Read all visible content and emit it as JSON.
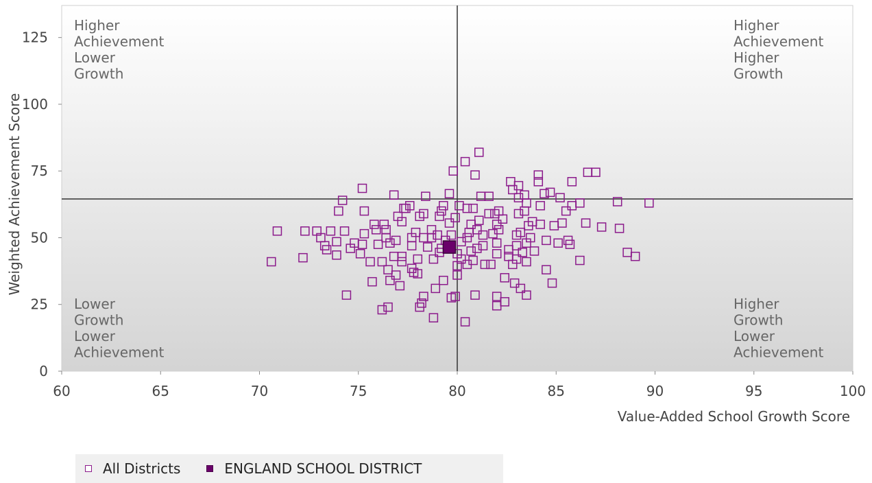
{
  "chart_data": {
    "type": "scatter",
    "xlabel": "Value-Added School Growth Score",
    "ylabel": "Weighted Achievement Score",
    "xlim": [
      60,
      100
    ],
    "ylim": [
      0,
      137
    ],
    "xticks": [
      "60",
      "65",
      "70",
      "75",
      "80",
      "85",
      "90",
      "95",
      "100"
    ],
    "yticks": [
      "0",
      "25",
      "50",
      "75",
      "100",
      "125"
    ],
    "reference_lines": {
      "x": 80,
      "y": 64.5
    },
    "quadrant_labels": {
      "top_left": [
        "Higher",
        "Achievement",
        "Lower",
        "Growth"
      ],
      "top_right": [
        "Higher",
        "Achievement",
        "Higher",
        "Growth"
      ],
      "bottom_left": [
        "Lower",
        "Growth",
        "Lower",
        "Achievement"
      ],
      "bottom_right": [
        "Higher",
        "Growth",
        "Lower",
        "Achievement"
      ]
    },
    "legend_position": "bottom-left",
    "series": [
      {
        "name": "All Districts",
        "marker": "open-square",
        "color": "#8b1a8b",
        "points": [
          [
            70.6,
            41
          ],
          [
            70.9,
            52.5
          ],
          [
            72.2,
            42.5
          ],
          [
            72.3,
            52.5
          ],
          [
            72.9,
            52.5
          ],
          [
            73.1,
            50
          ],
          [
            73.3,
            47
          ],
          [
            73.4,
            45.5
          ],
          [
            73.6,
            52.5
          ],
          [
            73.9,
            48.5
          ],
          [
            73.9,
            43.5
          ],
          [
            74.0,
            60
          ],
          [
            74.2,
            64
          ],
          [
            74.3,
            52.5
          ],
          [
            74.4,
            28.5
          ],
          [
            74.6,
            46
          ],
          [
            74.8,
            48
          ],
          [
            75.1,
            44
          ],
          [
            75.2,
            47.5
          ],
          [
            75.2,
            68.5
          ],
          [
            75.3,
            51.5
          ],
          [
            75.3,
            60
          ],
          [
            75.6,
            41
          ],
          [
            75.7,
            33.5
          ],
          [
            75.8,
            55
          ],
          [
            75.9,
            53
          ],
          [
            76.0,
            47.5
          ],
          [
            76.2,
            41
          ],
          [
            76.2,
            23
          ],
          [
            76.3,
            55
          ],
          [
            76.4,
            53
          ],
          [
            76.4,
            50
          ],
          [
            76.5,
            38
          ],
          [
            76.5,
            24
          ],
          [
            76.6,
            48
          ],
          [
            76.6,
            34
          ],
          [
            76.8,
            66
          ],
          [
            76.8,
            43
          ],
          [
            76.9,
            49
          ],
          [
            76.9,
            36
          ],
          [
            77.0,
            58
          ],
          [
            77.1,
            32
          ],
          [
            77.2,
            56
          ],
          [
            77.2,
            43
          ],
          [
            77.2,
            41
          ],
          [
            77.3,
            61
          ],
          [
            77.4,
            61
          ],
          [
            77.6,
            62
          ],
          [
            77.7,
            50
          ],
          [
            77.7,
            47
          ],
          [
            77.7,
            38.5
          ],
          [
            77.8,
            37
          ],
          [
            77.9,
            52
          ],
          [
            78.0,
            42
          ],
          [
            78.0,
            36.5
          ],
          [
            78.1,
            58
          ],
          [
            78.1,
            24
          ],
          [
            78.2,
            25.5
          ],
          [
            78.3,
            59
          ],
          [
            78.3,
            50
          ],
          [
            78.3,
            28
          ],
          [
            78.4,
            65.5
          ],
          [
            78.5,
            46.5
          ],
          [
            78.7,
            53
          ],
          [
            78.7,
            50
          ],
          [
            78.8,
            42
          ],
          [
            78.8,
            20
          ],
          [
            78.9,
            31
          ],
          [
            79.0,
            51
          ],
          [
            79.1,
            58
          ],
          [
            79.1,
            44.5
          ],
          [
            79.2,
            46
          ],
          [
            79.2,
            60
          ],
          [
            79.3,
            62
          ],
          [
            79.3,
            34
          ],
          [
            79.4,
            49
          ],
          [
            79.5,
            47
          ],
          [
            79.6,
            66.5
          ],
          [
            79.6,
            55.5
          ],
          [
            79.7,
            27.5
          ],
          [
            79.7,
            51
          ],
          [
            79.8,
            75
          ],
          [
            79.9,
            28
          ],
          [
            79.9,
            57.5
          ],
          [
            80.0,
            39.5
          ],
          [
            80.0,
            36
          ],
          [
            80.0,
            44
          ],
          [
            80.1,
            62
          ],
          [
            80.2,
            48.5
          ],
          [
            80.2,
            42
          ],
          [
            80.4,
            78.5
          ],
          [
            80.4,
            18.5
          ],
          [
            80.5,
            40
          ],
          [
            80.5,
            50
          ],
          [
            80.5,
            61
          ],
          [
            80.6,
            52
          ],
          [
            80.7,
            55
          ],
          [
            80.7,
            45
          ],
          [
            80.8,
            61
          ],
          [
            80.8,
            41.5
          ],
          [
            80.9,
            28.5
          ],
          [
            80.9,
            73.5
          ],
          [
            81.0,
            53
          ],
          [
            81.0,
            46
          ],
          [
            81.1,
            82
          ],
          [
            81.1,
            56.5
          ],
          [
            81.2,
            65.5
          ],
          [
            81.3,
            47
          ],
          [
            81.3,
            51
          ],
          [
            81.4,
            40
          ],
          [
            81.6,
            65.5
          ],
          [
            81.6,
            59
          ],
          [
            81.7,
            40
          ],
          [
            81.8,
            51.5
          ],
          [
            81.9,
            59
          ],
          [
            82.0,
            55
          ],
          [
            82.0,
            48
          ],
          [
            82.0,
            44
          ],
          [
            82.0,
            28
          ],
          [
            82.0,
            24.5
          ],
          [
            82.1,
            60
          ],
          [
            82.1,
            53
          ],
          [
            82.3,
            57
          ],
          [
            82.4,
            35
          ],
          [
            82.4,
            26
          ],
          [
            82.6,
            45.5
          ],
          [
            82.6,
            43
          ],
          [
            82.7,
            71
          ],
          [
            82.8,
            68
          ],
          [
            82.8,
            40
          ],
          [
            82.9,
            33
          ],
          [
            83.0,
            42
          ],
          [
            83.0,
            47
          ],
          [
            83.0,
            51
          ],
          [
            83.1,
            65
          ],
          [
            83.1,
            69.5
          ],
          [
            83.1,
            59
          ],
          [
            83.2,
            52
          ],
          [
            83.2,
            31
          ],
          [
            83.3,
            44.5
          ],
          [
            83.4,
            66
          ],
          [
            83.4,
            60
          ],
          [
            83.5,
            63
          ],
          [
            83.5,
            48
          ],
          [
            83.5,
            41
          ],
          [
            83.5,
            28.5
          ],
          [
            83.6,
            54.5
          ],
          [
            83.7,
            50
          ],
          [
            83.8,
            56
          ],
          [
            83.9,
            45
          ],
          [
            84.1,
            73.5
          ],
          [
            84.1,
            71
          ],
          [
            84.2,
            62
          ],
          [
            84.2,
            55
          ],
          [
            84.4,
            66.5
          ],
          [
            84.5,
            49
          ],
          [
            84.5,
            38
          ],
          [
            84.7,
            67
          ],
          [
            84.8,
            33
          ],
          [
            84.9,
            54.5
          ],
          [
            85.1,
            48
          ],
          [
            85.2,
            65
          ],
          [
            85.3,
            55.5
          ],
          [
            85.5,
            60
          ],
          [
            85.6,
            49
          ],
          [
            85.7,
            47.5
          ],
          [
            85.8,
            62
          ],
          [
            85.8,
            71
          ],
          [
            86.2,
            63
          ],
          [
            86.2,
            41.5
          ],
          [
            86.5,
            55.5
          ],
          [
            86.6,
            74.5
          ],
          [
            87.0,
            74.5
          ],
          [
            87.3,
            54
          ],
          [
            88.1,
            63.5
          ],
          [
            88.2,
            53.5
          ],
          [
            88.6,
            44.5
          ],
          [
            89.0,
            43
          ],
          [
            89.7,
            63
          ]
        ]
      },
      {
        "name": "ENGLAND SCHOOL DISTRICT",
        "marker": "filled-square",
        "color": "#6a006a",
        "points": [
          [
            79.6,
            46.5
          ]
        ]
      }
    ]
  }
}
